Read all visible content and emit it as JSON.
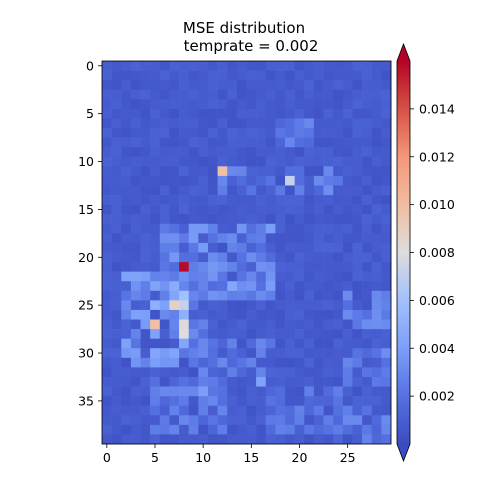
{
  "chart_data": {
    "type": "heatmap",
    "title_lines": [
      "MSE distribution",
      "temprate = 0.002"
    ],
    "xlabel": "",
    "ylabel": "",
    "cols": 30,
    "rows": 40,
    "x_ticks": [
      0,
      5,
      10,
      15,
      20,
      25
    ],
    "y_ticks": [
      0,
      5,
      10,
      15,
      20,
      25,
      30,
      35
    ],
    "colormap": "coolwarm",
    "colorbar": {
      "vmin": 0.0,
      "vmax": 0.016,
      "ticks": [
        0.002,
        0.004,
        0.006,
        0.008,
        0.01,
        0.012,
        0.014
      ],
      "tick_labels": [
        "0.002",
        "0.004",
        "0.006",
        "0.008",
        "0.010",
        "0.012",
        "0.014"
      ],
      "extend": "both"
    },
    "background_level": 0.0008,
    "regions": [
      {
        "rows": [
          6,
          8
        ],
        "cols": [
          18,
          22
        ],
        "value": 0.0022
      },
      {
        "rows": [
          11,
          13
        ],
        "cols": [
          12,
          24
        ],
        "value": 0.0024
      },
      {
        "rows": [
          17,
          24
        ],
        "cols": [
          6,
          17
        ],
        "value": 0.0028
      },
      {
        "rows": [
          22,
          31
        ],
        "cols": [
          2,
          10
        ],
        "value": 0.0032
      },
      {
        "rows": [
          29,
          32
        ],
        "cols": [
          10,
          17
        ],
        "value": 0.0022
      },
      {
        "rows": [
          33,
          38
        ],
        "cols": [
          5,
          12
        ],
        "value": 0.0022
      },
      {
        "rows": [
          34,
          38
        ],
        "cols": [
          17,
          24
        ],
        "value": 0.002
      },
      {
        "rows": [
          24,
          27
        ],
        "cols": [
          25,
          29
        ],
        "value": 0.0025
      },
      {
        "rows": [
          30,
          33
        ],
        "cols": [
          25,
          29
        ],
        "value": 0.0024
      },
      {
        "rows": [
          36,
          39
        ],
        "cols": [
          24,
          29
        ],
        "value": 0.0022
      }
    ],
    "hotspots": [
      {
        "row": 21,
        "col": 8,
        "value": 0.0158
      },
      {
        "row": 11,
        "col": 12,
        "value": 0.0098
      },
      {
        "row": 12,
        "col": 19,
        "value": 0.0072
      },
      {
        "row": 25,
        "col": 7,
        "value": 0.0088
      },
      {
        "row": 24,
        "col": 8,
        "value": 0.006
      },
      {
        "row": 25,
        "col": 8,
        "value": 0.0072
      },
      {
        "row": 26,
        "col": 8,
        "value": 0.005
      },
      {
        "row": 27,
        "col": 5,
        "value": 0.0098
      },
      {
        "row": 27,
        "col": 8,
        "value": 0.0082
      },
      {
        "row": 28,
        "col": 8,
        "value": 0.008
      },
      {
        "row": 25,
        "col": 5,
        "value": 0.005
      },
      {
        "row": 23,
        "col": 7,
        "value": 0.0048
      },
      {
        "row": 33,
        "col": 16,
        "value": 0.0042
      },
      {
        "row": 34,
        "col": 10,
        "value": 0.004
      },
      {
        "row": 23,
        "col": 13,
        "value": 0.0045
      }
    ]
  }
}
